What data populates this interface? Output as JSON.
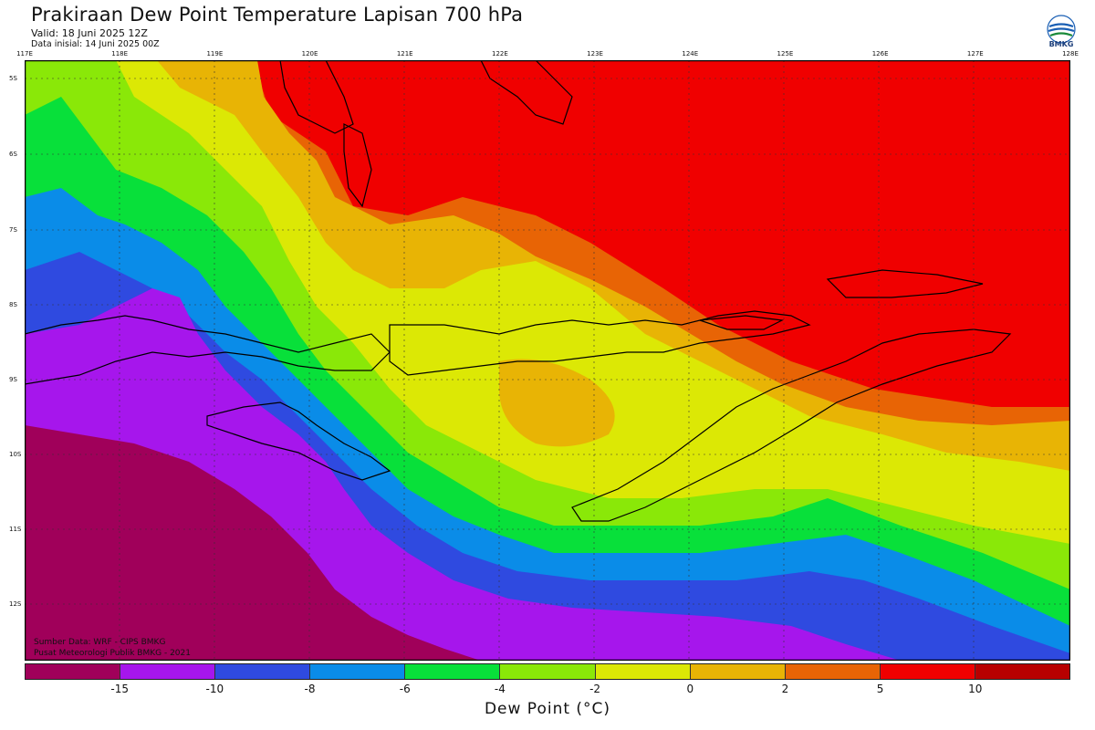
{
  "header": {
    "title": "Prakiraan Dew Point Temperature Lapisan 700 hPa",
    "valid": "Valid: 18 Juni 2025 12Z",
    "init": "Data inisial: 14 Juni 2025 00Z"
  },
  "logo": {
    "text": "BMKG"
  },
  "axes": {
    "longitudes": [
      "117E",
      "118E",
      "119E",
      "120E",
      "121E",
      "122E",
      "123E",
      "124E",
      "125E",
      "126E",
      "127E",
      "128E"
    ],
    "latitudes": [
      "5S",
      "6S",
      "7S",
      "8S",
      "9S",
      "10S",
      "11S",
      "12S"
    ]
  },
  "source": {
    "line1": "Sumber Data: WRF - CIPS BMKG",
    "line2": "Pusat Meteorologi Publik BMKG - 2021"
  },
  "colorbar": {
    "title": "Dew Point (°C)",
    "labels": [
      "-15",
      "-10",
      "-8",
      "-6",
      "-4",
      "-2",
      "0",
      "2",
      "5",
      "10"
    ],
    "colors": [
      "#a0005a",
      "#a616ec",
      "#2f4ae0",
      "#0a8ce8",
      "#08e03a",
      "#8ae808",
      "#dce805",
      "#e8b405",
      "#e86405",
      "#f00000",
      "#b80000"
    ]
  }
}
